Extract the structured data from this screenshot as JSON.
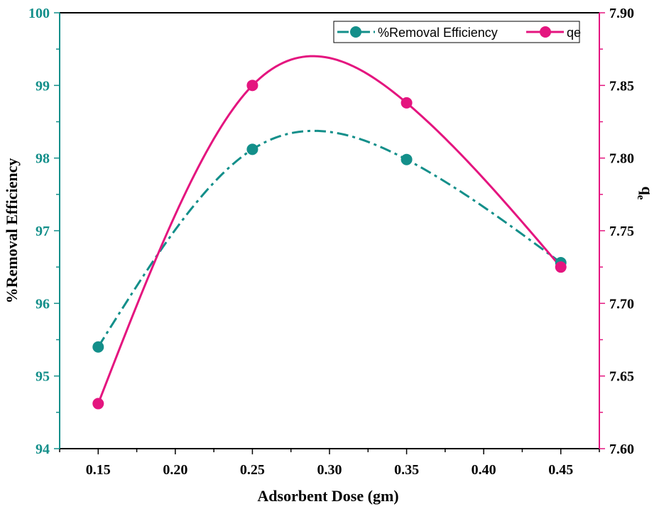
{
  "colors": {
    "left_axis": "#138f8a",
    "right_axis": "#e4157f",
    "series_removal": "#138f8a",
    "series_qe": "#e4157f",
    "frame": "#000000"
  },
  "chart_data": {
    "type": "line",
    "xlabel": "Adsorbent Dose (gm)",
    "ylabel_left": "%Removal Efficiency",
    "ylabel_right_main": "q",
    "ylabel_right_sub": "e",
    "xlim": [
      0.125,
      0.475
    ],
    "ylim_left": [
      94,
      100
    ],
    "ylim_right": [
      7.6,
      7.9
    ],
    "xticks": [
      "0.15",
      "0.20",
      "0.25",
      "0.30",
      "0.35",
      "0.40",
      "0.45"
    ],
    "yticks_left": [
      "94",
      "95",
      "96",
      "97",
      "98",
      "99",
      "100"
    ],
    "yticks_right": [
      "7.60",
      "7.65",
      "7.70",
      "7.75",
      "7.80",
      "7.85",
      "7.90"
    ],
    "grid": false,
    "legend_position": "top-right",
    "series": [
      {
        "name": "%Removal Efficiency",
        "axis": "left",
        "line_style": "dash-dot",
        "x": [
          0.15,
          0.25,
          0.35,
          0.45
        ],
        "values": [
          95.4,
          98.12,
          97.98,
          96.56
        ]
      },
      {
        "name": "qe",
        "axis": "right",
        "line_style": "solid",
        "x": [
          0.15,
          0.25,
          0.35,
          0.45
        ],
        "values": [
          7.631,
          7.85,
          7.838,
          7.725
        ]
      }
    ]
  }
}
